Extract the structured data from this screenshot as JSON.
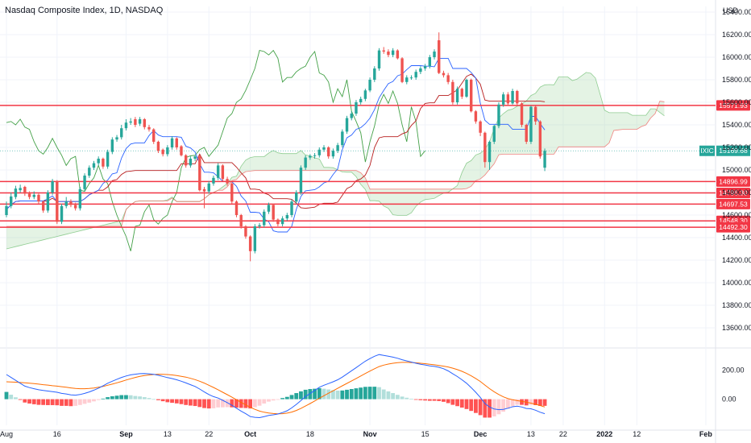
{
  "title": "Nasdaq Composite Index, 1D, NASDAQ",
  "currency": "USD",
  "colors": {
    "up": "#26a69a",
    "down": "#ef5350",
    "level_line": "#f23645",
    "conversion_line": "#2962ff",
    "base_line": "#b71c1c",
    "lagging_span": "#43a047",
    "cloud_fill": "#a5d6a7",
    "macd_line": "#2962ff",
    "signal_line": "#ff6d00",
    "hist_up_strong": "#26a69a",
    "hist_up_weak": "#b2dfdb",
    "hist_down_strong": "#ff5252",
    "hist_down_weak": "#ffcdd2",
    "grid": "#f0f3fa",
    "axis_text": "#131722"
  },
  "chart_data": [
    {
      "type": "candlestick",
      "title": "Nasdaq Composite Index, 1D, NASDAQ",
      "ylim": [
        13450,
        16450
      ],
      "y_ticks": [
        "13600.00",
        "13800.00",
        "14000.00",
        "14200.00",
        "14400.00",
        "14600.00",
        "14800.00",
        "15000.00",
        "15200.00",
        "15400.00",
        "15600.00",
        "15800.00",
        "16000.00",
        "16200.00",
        "16400.00"
      ],
      "x_ticks": [
        "Aug",
        "16",
        "Sep",
        "13",
        "22",
        "Oct",
        "18",
        "Nov",
        "15",
        "Dec",
        "13",
        "22",
        "2022",
        "12",
        "Feb"
      ],
      "current_label": "IXIC",
      "current_value": 15169.68,
      "levels": [
        15571.93,
        14896.99,
        14796.3,
        14697.53,
        14548.3,
        14492.3
      ],
      "level_labels": [
        "15571.93",
        "14896.99",
        "14796.30",
        "14697.53",
        "14548.30",
        "14492.30"
      ],
      "indicators": [
        "Ichimoku Cloud"
      ],
      "closes": [
        14680,
        14765,
        14835,
        14840,
        14790,
        14760,
        14780,
        14720,
        14640,
        14800,
        14900,
        14540,
        14680,
        14720,
        14690,
        14660,
        14830,
        14950,
        15020,
        15060,
        15100,
        15030,
        15160,
        15270,
        15290,
        15370,
        15420,
        15430,
        15400,
        15450,
        15380,
        15360,
        15250,
        15170,
        15140,
        15200,
        15280,
        15200,
        15130,
        15040,
        15100,
        15120,
        14820,
        14810,
        14880,
        14930,
        15040,
        14920,
        14880,
        14720,
        14600,
        14500,
        14410,
        14280,
        14500,
        14510,
        14630,
        14690,
        14560,
        14520,
        14570,
        14600,
        14720,
        14800,
        15020,
        15110,
        15125,
        15130,
        15180,
        15200,
        15120,
        15170,
        15220,
        15340,
        15460,
        15500,
        15600,
        15630,
        15705,
        15800,
        15900,
        16060,
        16050,
        16020,
        16060,
        15990,
        15780,
        15820,
        15820,
        15870,
        15900,
        15920,
        16000,
        16050,
        15860,
        15840,
        15780,
        15600,
        15720,
        15650,
        15800,
        15520,
        15430,
        15330,
        15070,
        15250,
        15390,
        15580,
        15670,
        15590,
        15700,
        15590,
        15400,
        15250,
        15560,
        15430,
        15120,
        15170
      ],
      "opens": [
        14600,
        14680,
        14760,
        14820,
        14850,
        14790,
        14760,
        14780,
        14720,
        14640,
        14800,
        14900,
        14540,
        14680,
        14720,
        14690,
        14660,
        14830,
        14950,
        15020,
        15060,
        15100,
        15030,
        15160,
        15270,
        15290,
        15370,
        15420,
        15450,
        15410,
        15450,
        15380,
        15360,
        15250,
        15180,
        15140,
        15200,
        15280,
        15210,
        15130,
        15040,
        15100,
        15120,
        14830,
        14810,
        14880,
        14930,
        15040,
        14920,
        14880,
        14720,
        14600,
        14500,
        14410,
        14280,
        14500,
        14510,
        14630,
        14690,
        14560,
        14520,
        14570,
        14600,
        14720,
        14800,
        15020,
        15110,
        15125,
        15130,
        15180,
        15200,
        15120,
        15170,
        15220,
        15340,
        15460,
        15500,
        15600,
        15630,
        15705,
        15800,
        15900,
        16060,
        16050,
        16020,
        16060,
        15990,
        15780,
        15820,
        15820,
        15870,
        15900,
        15920,
        16000,
        16150,
        15860,
        15840,
        15780,
        15600,
        15720,
        15650,
        15800,
        15520,
        15430,
        15330,
        15070,
        15250,
        15390,
        15580,
        15670,
        15590,
        15700,
        15590,
        15400,
        15250,
        15560,
        15430,
        15020
      ],
      "highs": [
        14720,
        14800,
        14860,
        14870,
        14860,
        14810,
        14810,
        14790,
        14730,
        14820,
        14920,
        14910,
        14700,
        14760,
        14740,
        14710,
        14850,
        14970,
        15040,
        15080,
        15120,
        15110,
        15180,
        15290,
        15310,
        15400,
        15450,
        15460,
        15470,
        15470,
        15460,
        15400,
        15370,
        15260,
        15190,
        15220,
        15300,
        15290,
        15220,
        15140,
        15120,
        15130,
        15130,
        14850,
        14900,
        14950,
        15060,
        15050,
        14940,
        14890,
        14730,
        14610,
        14510,
        14420,
        14520,
        14530,
        14650,
        14710,
        14700,
        14570,
        14590,
        14620,
        14740,
        14820,
        15040,
        15130,
        15140,
        15150,
        15200,
        15220,
        15210,
        15190,
        15240,
        15360,
        15480,
        15520,
        15620,
        15650,
        15720,
        15820,
        15920,
        16080,
        16090,
        16070,
        16080,
        16070,
        16000,
        15840,
        15840,
        15890,
        15920,
        15940,
        16020,
        16070,
        16220,
        15880,
        15860,
        15800,
        15740,
        15730,
        15810,
        15810,
        15530,
        15440,
        15340,
        15260,
        15400,
        15600,
        15690,
        15690,
        15720,
        15710,
        15600,
        15410,
        15570,
        15570,
        15440,
        15190
      ],
      "lows": [
        14580,
        14660,
        14740,
        14800,
        14770,
        14740,
        14740,
        14700,
        14620,
        14620,
        14780,
        14520,
        14520,
        14660,
        14670,
        14640,
        14640,
        14810,
        14930,
        15000,
        15040,
        15010,
        15010,
        15140,
        15250,
        15270,
        15350,
        15400,
        15380,
        15390,
        15360,
        15340,
        15230,
        15150,
        15120,
        15120,
        15180,
        15180,
        15120,
        15020,
        15020,
        15080,
        14810,
        14660,
        14790,
        14860,
        14910,
        14900,
        14860,
        14700,
        14580,
        14480,
        14390,
        14190,
        14260,
        14480,
        14490,
        14610,
        14540,
        14500,
        14500,
        14550,
        14580,
        14700,
        14780,
        15000,
        15090,
        15100,
        15110,
        15160,
        15100,
        15100,
        15150,
        15200,
        15320,
        15440,
        15480,
        15580,
        15610,
        15690,
        15780,
        15880,
        16030,
        16000,
        16000,
        15980,
        15770,
        15760,
        15800,
        15800,
        15850,
        15880,
        15900,
        15980,
        15850,
        15820,
        15760,
        15580,
        15580,
        15630,
        15640,
        15510,
        15410,
        15300,
        15020,
        15000,
        15230,
        15370,
        15560,
        15570,
        15580,
        15570,
        15380,
        15230,
        15230,
        15400,
        15100,
        14990
      ]
    },
    {
      "type": "macd",
      "ylim": [
        -180,
        320
      ],
      "y_ticks": [
        "200.00",
        "0.00"
      ],
      "macd_values": [
        170,
        150,
        130,
        110,
        90,
        80,
        72,
        65,
        60,
        56,
        52,
        48,
        40,
        36,
        30,
        28,
        32,
        40,
        50,
        62,
        76,
        92,
        110,
        124,
        137,
        150,
        160,
        168,
        172,
        176,
        177,
        175,
        171,
        165,
        157,
        149,
        142,
        134,
        124,
        112,
        100,
        88,
        70,
        50,
        32,
        18,
        8,
        -8,
        -24,
        -42,
        -62,
        -82,
        -100,
        -120,
        -125,
        -127,
        -120,
        -112,
        -108,
        -102,
        -92,
        -80,
        -60,
        -36,
        -10,
        18,
        40,
        60,
        82,
        96,
        108,
        120,
        134,
        152,
        174,
        196,
        218,
        240,
        262,
        280,
        296,
        308,
        302,
        296,
        290,
        282,
        272,
        264,
        256,
        248,
        241,
        236,
        230,
        226,
        220,
        210,
        195,
        175,
        156,
        134,
        110,
        80,
        48,
        12,
        -30,
        -54,
        -68,
        -72,
        -70,
        -62,
        -52,
        -48,
        -54,
        -64,
        -66,
        -76,
        -90,
        -100
      ],
      "signal_values": [
        120,
        119,
        117,
        115,
        113,
        110,
        107,
        104,
        100,
        97,
        93,
        90,
        86,
        82,
        78,
        74,
        72,
        72,
        74,
        77,
        82,
        88,
        96,
        104,
        113,
        122,
        132,
        141,
        150,
        157,
        163,
        167,
        170,
        172,
        171,
        170,
        167,
        163,
        158,
        152,
        144,
        135,
        124,
        111,
        96,
        81,
        65,
        48,
        31,
        14,
        -4,
        -22,
        -39,
        -56,
        -70,
        -82,
        -90,
        -95,
        -99,
        -101,
        -100,
        -96,
        -89,
        -78,
        -64,
        -47,
        -30,
        -12,
        6,
        24,
        41,
        58,
        75,
        92,
        109,
        126,
        143,
        160,
        177,
        194,
        210,
        225,
        235,
        242,
        248,
        252,
        254,
        254,
        253,
        251,
        248,
        245,
        241,
        237,
        233,
        228,
        222,
        214,
        204,
        192,
        178,
        161,
        143,
        122,
        97,
        73,
        51,
        32,
        16,
        4,
        -4,
        -10,
        -15,
        -21,
        -27,
        -35,
        -44,
        -54
      ]
    }
  ]
}
